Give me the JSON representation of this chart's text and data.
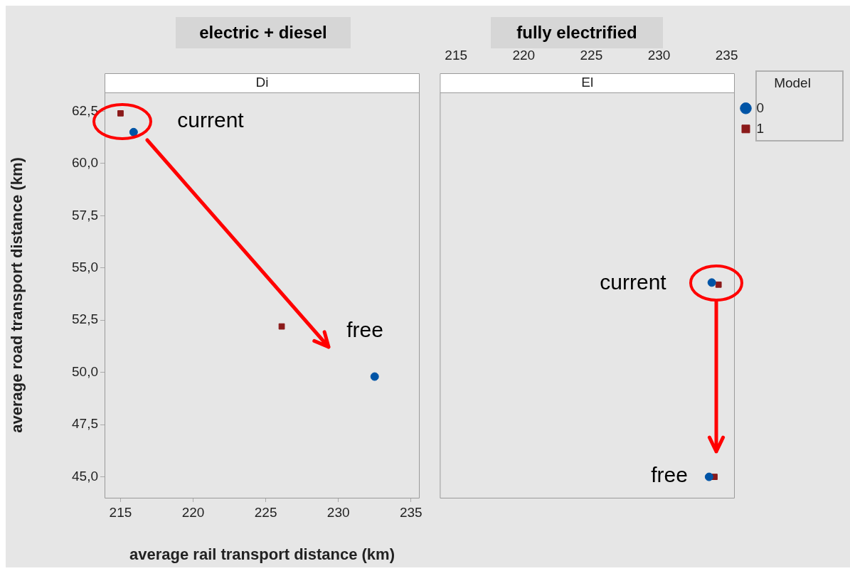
{
  "chart_data": [
    {
      "type": "scatter",
      "title": "Di",
      "xlabel": "average rail transport distance (km)",
      "ylabel": "average road transport distance (km)",
      "xlim": [
        213.9,
        235.6
      ],
      "xticks": [
        215,
        220,
        225,
        230,
        235
      ],
      "ylim": [
        44.0,
        63.4
      ],
      "yticks": [
        {
          "value": 45,
          "label": "45,0"
        },
        {
          "value": 47.5,
          "label": "47,5"
        },
        {
          "value": 50,
          "label": "50,0"
        },
        {
          "value": 52.5,
          "label": "52,5"
        },
        {
          "value": 55,
          "label": "55,0"
        },
        {
          "value": 57.5,
          "label": "57,5"
        },
        {
          "value": 60,
          "label": "60,0"
        },
        {
          "value": 62.5,
          "label": "62,5"
        }
      ],
      "series": [
        {
          "color": "#0054a6",
          "marker": "circle",
          "x": [
            215.9,
            232.5
          ],
          "values": [
            61.5,
            49.8
          ]
        },
        {
          "color": "#8b1a1a",
          "marker": "square",
          "x": [
            215.0,
            226.1
          ],
          "values": [
            62.4,
            52.2
          ]
        }
      ],
      "annotations": [
        "electric + diesel",
        "current",
        "free"
      ],
      "grid": false
    },
    {
      "type": "scatter",
      "title": "El",
      "legend_title": "Model",
      "legend": "right",
      "xlim": [
        213.8,
        235.6
      ],
      "xticks": [
        215,
        220,
        225,
        230,
        235
      ],
      "ylim": [
        44.0,
        63.4
      ],
      "tick_labels": "x",
      "series": [
        {
          "name": "0",
          "color": "#0054a6",
          "marker": "circle",
          "x": [
            233.9,
            233.7
          ],
          "values": [
            54.3,
            45.0
          ]
        },
        {
          "name": "1",
          "color": "#8b1a1a",
          "marker": "square",
          "x": [
            234.4,
            234.1
          ],
          "values": [
            54.2,
            45.0
          ]
        }
      ],
      "annotations": [
        "fully electrified",
        "current",
        "free"
      ],
      "grid": false
    }
  ]
}
